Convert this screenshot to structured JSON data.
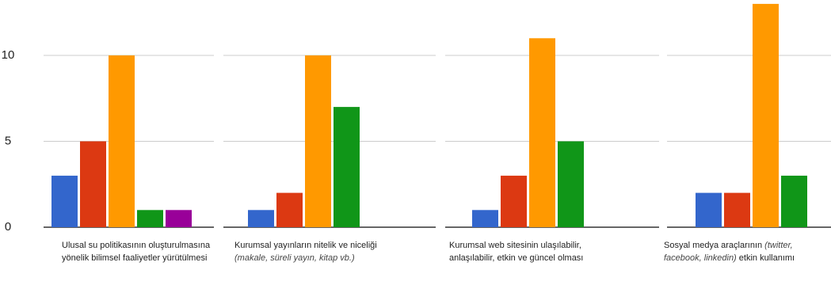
{
  "chart_data": {
    "type": "bar",
    "ylim": [
      0,
      13
    ],
    "yticks": [
      0,
      5,
      10
    ],
    "grid": true,
    "legend": "none",
    "colors": [
      "#3366cc",
      "#dc3912",
      "#ff9900",
      "#109618",
      "#990099"
    ],
    "categories": [
      {
        "label_plain": "Ulusal su politikasının oluşturulmasına yönelik bilimsel faaliyetler yürütülmesi",
        "label_italic": "",
        "label_tail": "",
        "values": [
          3,
          5,
          10,
          1,
          1
        ]
      },
      {
        "label_plain": "Kurumsal yayınların nitelik ve niceliği ",
        "label_italic": "(makale, süreli yayın, kitap vb.)",
        "label_tail": "",
        "values": [
          1,
          2,
          10,
          7
        ]
      },
      {
        "label_plain": "Kurumsal web sitesinin ulaşılabilir, anlaşılabilir, etkin ve güncel olması",
        "label_italic": "",
        "label_tail": "",
        "values": [
          1,
          3,
          11,
          5
        ]
      },
      {
        "label_plain": "Sosyal medya araçlarının ",
        "label_italic": "(twitter, facebook, linkedin)",
        "label_tail": " etkin kullanımı",
        "values": [
          2,
          2,
          13,
          3
        ]
      }
    ]
  }
}
